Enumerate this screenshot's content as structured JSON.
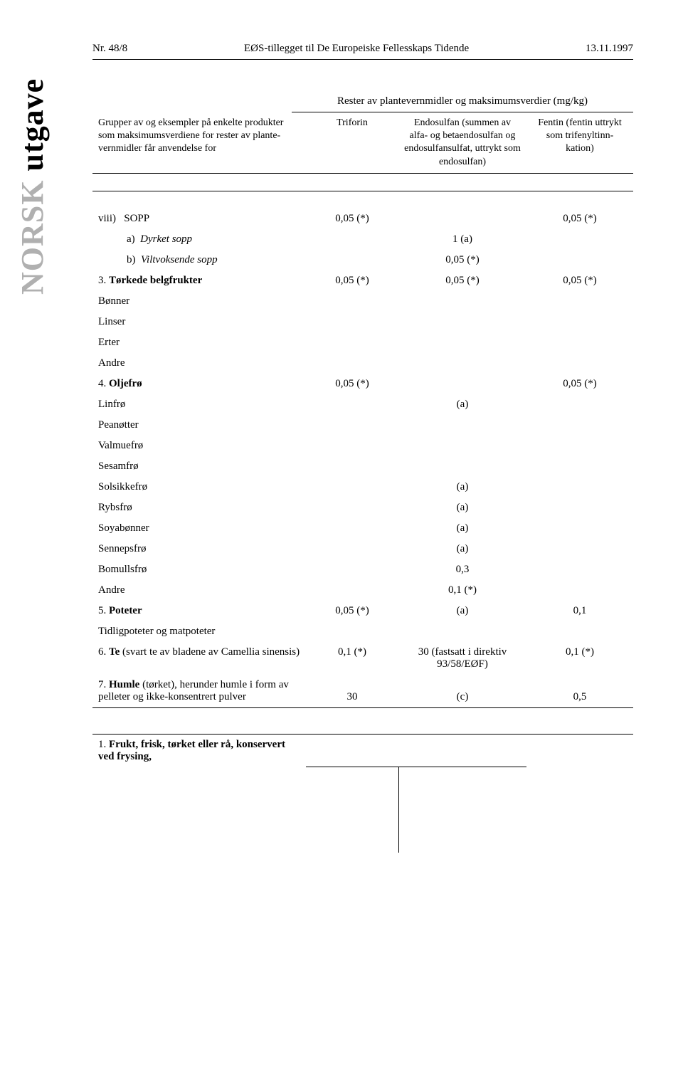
{
  "header": {
    "left": "Nr. 48/8",
    "center": "EØS-tillegget til De Europeiske Fellesskaps Tidende",
    "right": "13.11.1997"
  },
  "sidebar": {
    "light": "NORSK",
    "dark": " utgave"
  },
  "table_header": {
    "sub_caption": "Rester av plantevernmidler og maksimumsverdier (mg/kg)",
    "group_col": "Grupper av og eksempler på enkelte produkter som maksimumsverdiene for rester av plante-vernmidler får anvendelse for",
    "col2": "Triforin",
    "col3": "Endosulfan (summen av alfa- og betaendosulfan og endosulfansulfat, uttrykt som endosulfan)",
    "col4": "Fentin (fentin uttrykt som trifenyltinn-kation)"
  },
  "rows": {
    "viii": {
      "label": "viii)   SOPP",
      "c2": "0,05 (*)",
      "c4": "0,05 (*)",
      "a_label": "a)",
      "a_name": "Dyrket sopp",
      "a_c3": "1 (a)",
      "b_label": "b)",
      "b_name": "Viltvoksende sopp",
      "b_c3": "0,05 (*)"
    },
    "r3": {
      "num": "3.",
      "title": "Tørkede belgfrukter",
      "c2": "0,05 (*)",
      "c3": "0,05 (*)",
      "c4": "0,05 (*)",
      "items": [
        "Bønner",
        "Linser",
        "Erter",
        "Andre"
      ]
    },
    "r4": {
      "num": "4.",
      "title": "Oljefrø",
      "c2": "0,05 (*)",
      "c4": "0,05 (*)",
      "items": [
        {
          "name": "Linfrø",
          "c3": "(a)"
        },
        {
          "name": "Peanøtter",
          "c3": ""
        },
        {
          "name": "Valmuefrø",
          "c3": ""
        },
        {
          "name": "Sesamfrø",
          "c3": ""
        },
        {
          "name": "Solsikkefrø",
          "c3": "(a)"
        },
        {
          "name": "Rybsfrø",
          "c3": "(a)"
        },
        {
          "name": "Soyabønner",
          "c3": "(a)"
        },
        {
          "name": "Sennepsfrø",
          "c3": "(a)"
        },
        {
          "name": "Bomullsfrø",
          "c3": "0,3"
        },
        {
          "name": "Andre",
          "c3": "0,1 (*)"
        }
      ]
    },
    "r5": {
      "num": "5.",
      "title": "Poteter",
      "c2": "0,05 (*)",
      "c3": "(a)",
      "c4": "0,1",
      "sub": "Tidligpoteter og matpoteter"
    },
    "r6": {
      "num": "6.",
      "title": "Te",
      "title_suffix": " (svart te av bladene av Camellia sinensis)",
      "c2": "0,1 (*)",
      "c3": "30 (fastsatt i direktiv 93/58/EØF)",
      "c4": "0,1 (*)"
    },
    "r7": {
      "num": "7.",
      "title": "Humle",
      "title_suffix": " (tørket), herunder humle i form av pelleter og ikke-konsentrert pulver",
      "c2": "30",
      "c3": "(c)",
      "c4": "0,5"
    },
    "r1b": {
      "num": "1.",
      "title": "Frukt, frisk, tørket eller rå, konservert ved frysing,"
    }
  }
}
